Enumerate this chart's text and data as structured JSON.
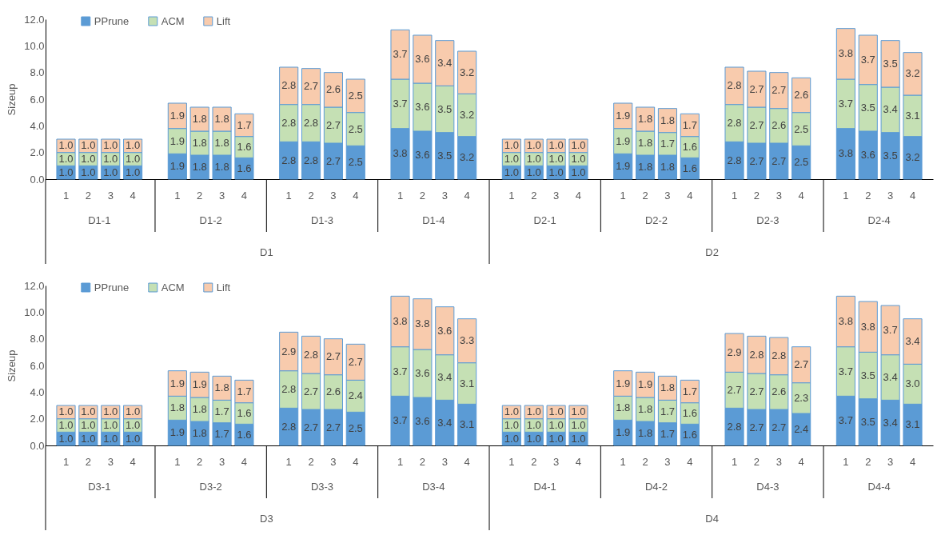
{
  "chart_data": [
    {
      "type": "bar",
      "stacked": true,
      "ylabel": "Sizeup",
      "legend": "top left",
      "categories": [
        "1",
        "2",
        "3",
        "4",
        "1",
        "2",
        "3",
        "4",
        "1",
        "2",
        "3",
        "4",
        "1",
        "2",
        "3",
        "4",
        "1",
        "2",
        "3",
        "4",
        "1",
        "2",
        "3",
        "4",
        "1",
        "2",
        "3",
        "4",
        "1",
        "2",
        "3",
        "4"
      ],
      "series": [
        {
          "name": "PPrune",
          "color": "#5b9bd5",
          "values": [
            1.0,
            1.0,
            1.0,
            1.0,
            1.9,
            1.8,
            1.8,
            1.6,
            2.8,
            2.8,
            2.7,
            2.5,
            3.8,
            3.6,
            3.5,
            3.2,
            1.0,
            1.0,
            1.0,
            1.0,
            1.9,
            1.8,
            1.8,
            1.6,
            2.8,
            2.7,
            2.7,
            2.5,
            3.8,
            3.6,
            3.5,
            3.2
          ],
          "value_labels": [
            "1.0",
            "1.0",
            "1.0",
            "1.0",
            "1.9",
            "1.8",
            "1.8",
            "1.6",
            "2.8",
            "2.8",
            "2.7",
            "2.5",
            "3.8",
            "3.6",
            "3.5",
            "3.2",
            "1.0",
            "1.0",
            "1.0",
            "1.0",
            "1.9",
            "1.8",
            "1.8",
            "1.6",
            "2.8",
            "2.7",
            "2.7",
            "2.5",
            "3.8",
            "3.6",
            "3.5",
            "3.2"
          ]
        },
        {
          "name": "ACM",
          "color": "#c5e0b4",
          "values": [
            1.0,
            1.0,
            1.0,
            1.0,
            1.9,
            1.8,
            1.8,
            1.6,
            2.8,
            2.8,
            2.7,
            2.5,
            3.7,
            3.6,
            3.5,
            3.2,
            1.0,
            1.0,
            1.0,
            1.0,
            1.9,
            1.8,
            1.7,
            1.6,
            2.8,
            2.7,
            2.6,
            2.5,
            3.7,
            3.5,
            3.4,
            3.1
          ],
          "value_labels": [
            "1.0",
            "1.0",
            "1.0",
            "1.0",
            "1.9",
            "1.8",
            "1.8",
            "1.6",
            "2.8",
            "2.8",
            "2.7",
            "2.5",
            "3.7",
            "3.6",
            "3.5",
            "3.2",
            "1.0",
            "1.0",
            "1.0",
            "1.0",
            "1.9",
            "1.8",
            "1.7",
            "1.6",
            "2.8",
            "2.7",
            "2.6",
            "2.5",
            "3.7",
            "3.5",
            "3.4",
            "3.1"
          ]
        },
        {
          "name": "Lift",
          "color": "#f8cbad",
          "values": [
            1.0,
            1.0,
            1.0,
            1.0,
            1.9,
            1.8,
            1.8,
            1.7,
            2.8,
            2.7,
            2.6,
            2.5,
            3.7,
            3.6,
            3.4,
            3.2,
            1.0,
            1.0,
            1.0,
            1.0,
            1.9,
            1.8,
            1.8,
            1.7,
            2.8,
            2.7,
            2.7,
            2.6,
            3.8,
            3.7,
            3.5,
            3.2
          ],
          "value_labels": [
            "1.0",
            "1.0",
            "1.0",
            "1.0",
            "1.9",
            "1.8",
            "1.8",
            "1.7",
            "2.8",
            "2.7",
            "2.6",
            "2.5",
            "3.7",
            "3.6",
            "3.4",
            "3.2",
            "1.0",
            "1.0",
            "1.0",
            "1.0",
            "1.9",
            "1.8",
            "1.8",
            "1.7",
            "2.8",
            "2.7",
            "2.7",
            "2.6",
            "3.8",
            "3.7",
            "3.5",
            "3.2"
          ]
        }
      ],
      "ylim": [
        0,
        12
      ],
      "yticks": [
        {
          "value": 0,
          "label": "0.0"
        },
        {
          "value": 2,
          "label": "2.0"
        },
        {
          "value": 4,
          "label": "4.0"
        },
        {
          "value": 6,
          "label": "6.0"
        },
        {
          "value": 8,
          "label": "8.0"
        },
        {
          "value": 10,
          "label": "10.0"
        },
        {
          "value": 12,
          "label": "12.0"
        }
      ],
      "annotations": [
        "D1-1",
        "D1-2",
        "D1-3",
        "D1-4",
        "D2-1",
        "D2-2",
        "D2-3",
        "D2-4",
        "D1",
        "D2"
      ]
    },
    {
      "type": "bar",
      "stacked": true,
      "ylabel": "Sizeup",
      "legend": "top left",
      "categories": [
        "1",
        "2",
        "3",
        "4",
        "1",
        "2",
        "3",
        "4",
        "1",
        "2",
        "3",
        "4",
        "1",
        "2",
        "3",
        "4",
        "1",
        "2",
        "3",
        "4",
        "1",
        "2",
        "3",
        "4",
        "1",
        "2",
        "3",
        "4",
        "1",
        "2",
        "3",
        "4"
      ],
      "series": [
        {
          "name": "PPrune",
          "color": "#5b9bd5",
          "values": [
            1.0,
            1.0,
            1.0,
            1.0,
            1.9,
            1.8,
            1.7,
            1.6,
            2.8,
            2.7,
            2.7,
            2.5,
            3.7,
            3.6,
            3.4,
            3.1,
            1.0,
            1.0,
            1.0,
            1.0,
            1.9,
            1.8,
            1.7,
            1.6,
            2.8,
            2.7,
            2.7,
            2.4,
            3.7,
            3.5,
            3.4,
            3.1
          ],
          "value_labels": [
            "1.0",
            "1.0",
            "1.0",
            "1.0",
            "1.9",
            "1.8",
            "1.7",
            "1.6",
            "2.8",
            "2.7",
            "2.7",
            "2.5",
            "3.7",
            "3.6",
            "3.4",
            "3.1",
            "1.0",
            "1.0",
            "1.0",
            "1.0",
            "1.9",
            "1.8",
            "1.7",
            "1.6",
            "2.8",
            "2.7",
            "2.7",
            "2.4",
            "3.7",
            "3.5",
            "3.4",
            "3.1"
          ]
        },
        {
          "name": "ACM",
          "color": "#c5e0b4",
          "values": [
            1.0,
            1.0,
            1.0,
            1.0,
            1.8,
            1.8,
            1.7,
            1.6,
            2.8,
            2.7,
            2.6,
            2.4,
            3.7,
            3.6,
            3.4,
            3.1,
            1.0,
            1.0,
            1.0,
            1.0,
            1.8,
            1.8,
            1.7,
            1.6,
            2.7,
            2.7,
            2.6,
            2.3,
            3.7,
            3.5,
            3.4,
            3.0
          ],
          "value_labels": [
            "1.0",
            "1.0",
            "1.0",
            "1.0",
            "1.8",
            "1.8",
            "1.7",
            "1.6",
            "2.8",
            "2.7",
            "2.6",
            "2.4",
            "3.7",
            "3.6",
            "3.4",
            "3.1",
            "1.0",
            "1.0",
            "1.0",
            "1.0",
            "1.8",
            "1.8",
            "1.7",
            "1.6",
            "2.7",
            "2.7",
            "2.6",
            "2.3",
            "3.7",
            "3.5",
            "3.4",
            "3.0"
          ]
        },
        {
          "name": "Lift",
          "color": "#f8cbad",
          "values": [
            1.0,
            1.0,
            1.0,
            1.0,
            1.9,
            1.9,
            1.8,
            1.7,
            2.9,
            2.8,
            2.7,
            2.7,
            3.8,
            3.8,
            3.6,
            3.3,
            1.0,
            1.0,
            1.0,
            1.0,
            1.9,
            1.9,
            1.8,
            1.7,
            2.9,
            2.8,
            2.8,
            2.7,
            3.8,
            3.8,
            3.7,
            3.4
          ],
          "value_labels": [
            "1.0",
            "1.0",
            "1.0",
            "1.0",
            "1.9",
            "1.9",
            "1.8",
            "1.7",
            "2.9",
            "2.8",
            "2.7",
            "2.7",
            "3.8",
            "3.8",
            "3.6",
            "3.3",
            "1.0",
            "1.0",
            "1.0",
            "1.0",
            "1.9",
            "1.9",
            "1.8",
            "1.7",
            "2.9",
            "2.8",
            "2.8",
            "2.7",
            "3.8",
            "3.8",
            "3.7",
            "3.4"
          ]
        }
      ],
      "ylim": [
        0,
        12
      ],
      "yticks": [
        {
          "value": 0,
          "label": "0.0"
        },
        {
          "value": 2,
          "label": "2.0"
        },
        {
          "value": 4,
          "label": "4.0"
        },
        {
          "value": 6,
          "label": "6.0"
        },
        {
          "value": 8,
          "label": "8.0"
        },
        {
          "value": 10,
          "label": "10.0"
        },
        {
          "value": 12,
          "label": "12.0"
        }
      ],
      "annotations": [
        "D3-1",
        "D3-2",
        "D3-3",
        "D3-4",
        "D4-1",
        "D4-2",
        "D4-3",
        "D4-4",
        "D3",
        "D4"
      ]
    }
  ]
}
